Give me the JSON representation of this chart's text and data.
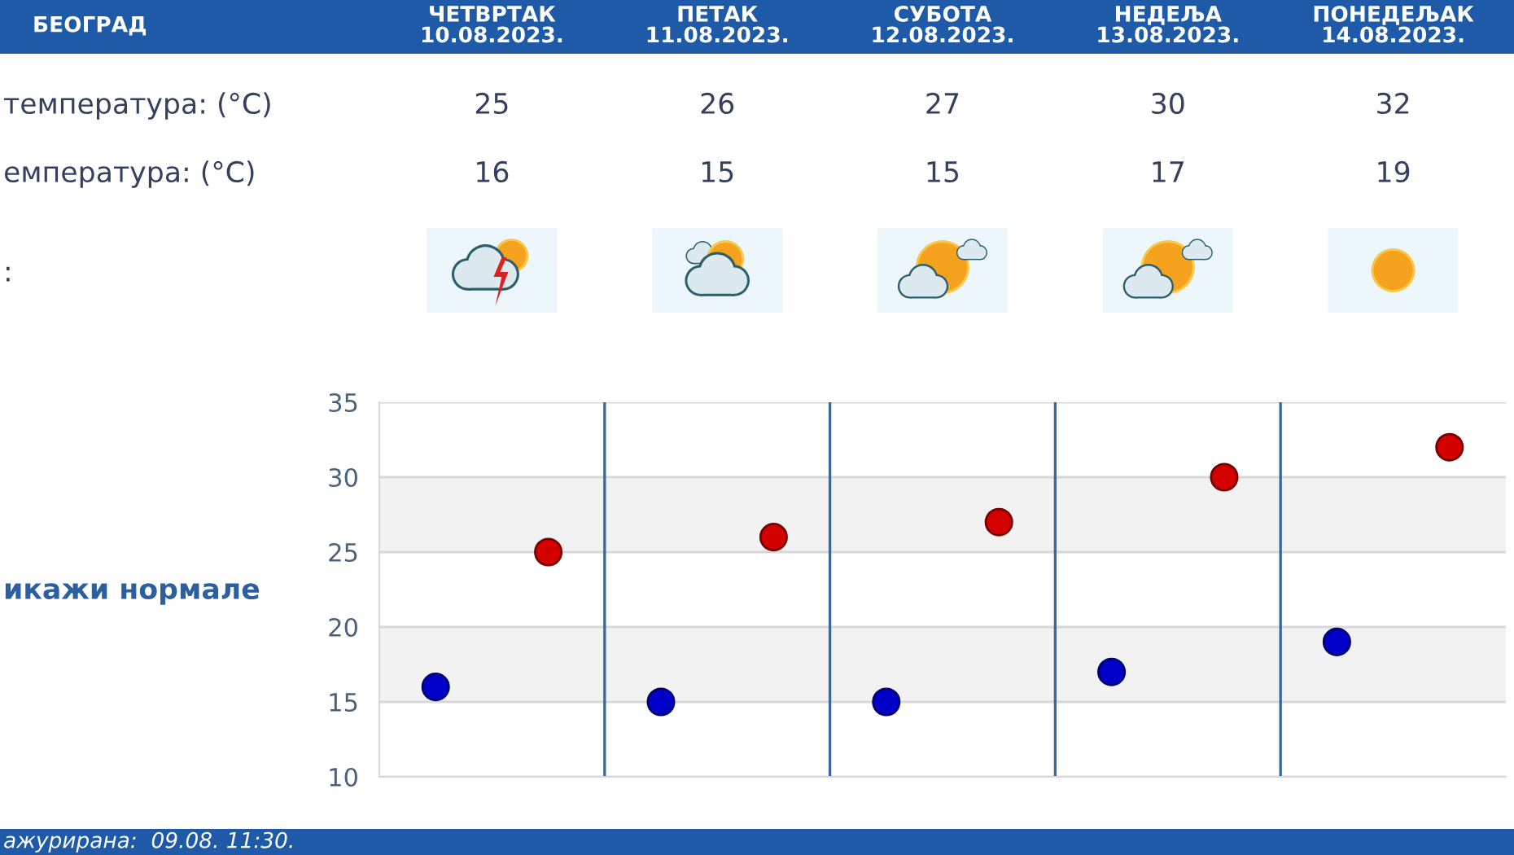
{
  "chart_data": {
    "type": "scatter",
    "title": "БЕОГРАД",
    "categories": [
      null,
      null,
      null,
      null,
      null
    ],
    "series": [
      {
        "color": "#d40000",
        "values": [
          25,
          26,
          27,
          30,
          32
        ]
      },
      {
        "color": "#0000c8",
        "values": [
          16,
          15,
          15,
          17,
          19
        ]
      }
    ],
    "ylim": [
      10,
      35
    ],
    "yticks": [
      10,
      15,
      20,
      25,
      30,
      35
    ],
    "grid": true,
    "marker": "circle",
    "data_labels": true,
    "bands": [
      {
        "axis": "y",
        "from": 15,
        "to": 20,
        "color": "#f2f2f2"
      },
      {
        "axis": "y",
        "from": 25,
        "to": 30,
        "color": "#f2f2f2"
      }
    ],
    "annotations": [
      "ЧЕТВРТАК\n10.08.2023.",
      "ПЕТАК\n11.08.2023.",
      "СУБОТА\n12.08.2023.",
      "НЕДЕЉА\n13.08.2023.",
      "ПОНЕДЕЉАК\n14.08.2023.",
      "температура: (°C)",
      "емпература: (°C)",
      ":",
      "икажи нормале",
      "ажурирана:  09.08. 11:30."
    ]
  }
}
